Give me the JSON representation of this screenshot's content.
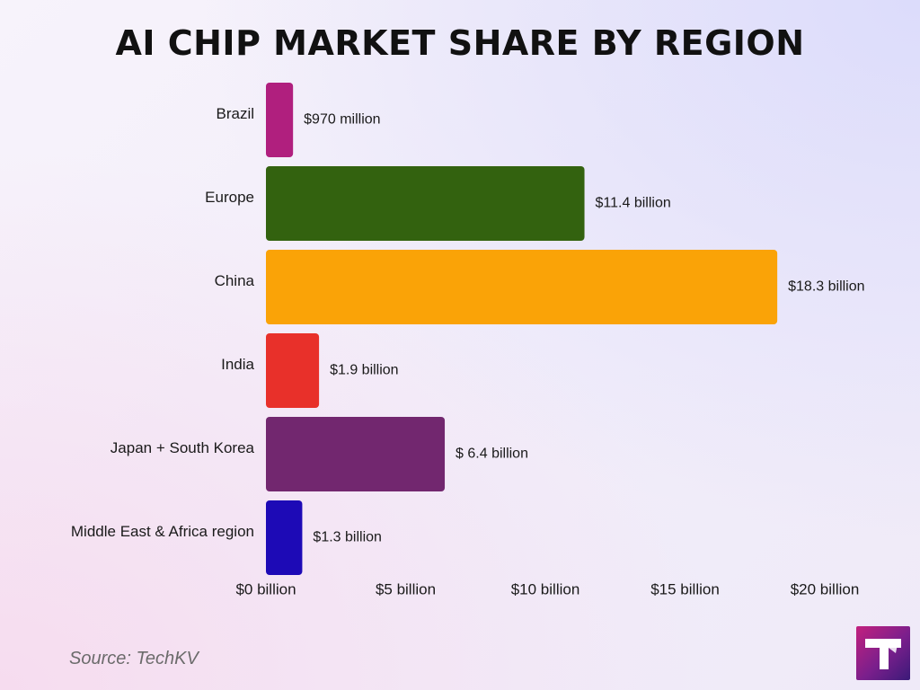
{
  "page": {
    "title": "AI CHIP MARKET SHARE BY REGION",
    "source": "Source: TechKV",
    "logo_icon": "techkv-logo-icon"
  },
  "chart_data": {
    "type": "bar",
    "orientation": "horizontal",
    "title": "AI CHIP MARKET SHARE BY REGION",
    "xlabel": "",
    "ylabel": "",
    "unit": "billion USD",
    "xlim": [
      0,
      20
    ],
    "x_ticks": [
      0,
      5,
      10,
      15,
      20
    ],
    "x_tick_labels": [
      "$0 billion",
      "$5 billion",
      "$10 billion",
      "$15 billion",
      "$20 billion"
    ],
    "grid": false,
    "categories": [
      "Brazil",
      "Europe",
      "China",
      "India",
      "Japan + South Korea",
      "Middle East & Africa region"
    ],
    "values": [
      0.97,
      11.4,
      18.3,
      1.9,
      6.4,
      1.3
    ],
    "data_labels": [
      "$970 million",
      "$11.4 billion",
      "$18.3 billion",
      "$1.9 billion",
      "$ 6.4  billion",
      "$1.3 billion"
    ],
    "colors": [
      "#b01f7e",
      "#33620f",
      "#faa307",
      "#e8302a",
      "#72276f",
      "#1d0ab6"
    ]
  }
}
